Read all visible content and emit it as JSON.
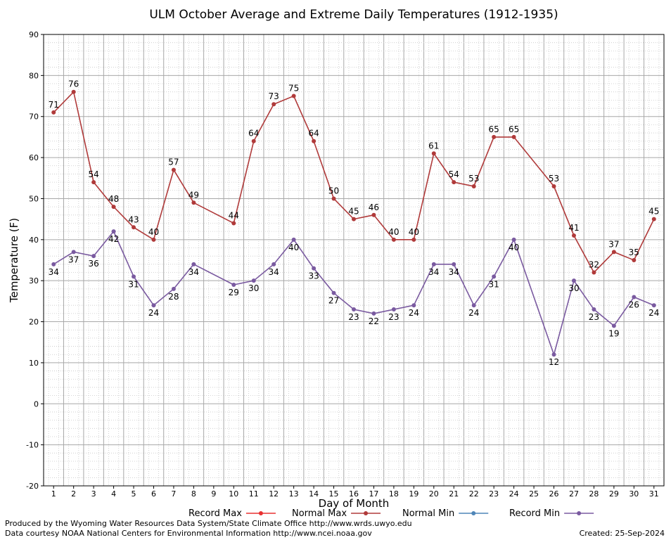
{
  "chart_data": {
    "type": "line",
    "title": "ULM October Average and Extreme Daily Temperatures (1912-1935)",
    "xlabel": "Day of Month",
    "ylabel": "Temperature (F)",
    "ylim": [
      -20,
      90
    ],
    "yticks": [
      -20,
      -10,
      0,
      10,
      20,
      30,
      40,
      50,
      60,
      70,
      80,
      90
    ],
    "x": [
      1,
      2,
      3,
      4,
      5,
      6,
      7,
      8,
      9,
      10,
      11,
      12,
      13,
      14,
      15,
      16,
      17,
      18,
      19,
      20,
      21,
      22,
      23,
      24,
      25,
      26,
      27,
      28,
      29,
      30,
      31
    ],
    "grid": true,
    "legend_position": "bottom",
    "series": [
      {
        "name": "Record Max",
        "color": "#b03a3a",
        "points": [
          [
            1,
            71
          ],
          [
            2,
            76
          ],
          [
            3,
            54
          ],
          [
            4,
            48
          ],
          [
            5,
            43
          ],
          [
            6,
            40
          ],
          [
            7,
            57
          ],
          [
            8,
            49
          ],
          [
            10,
            44
          ],
          [
            11,
            64
          ],
          [
            12,
            73
          ],
          [
            13,
            75
          ],
          [
            14,
            64
          ],
          [
            15,
            50
          ],
          [
            16,
            45
          ],
          [
            17,
            46
          ],
          [
            18,
            40
          ],
          [
            19,
            40
          ],
          [
            20,
            61
          ],
          [
            21,
            54
          ],
          [
            22,
            53
          ],
          [
            23,
            65
          ],
          [
            24,
            65
          ],
          [
            26,
            53
          ],
          [
            27,
            41
          ],
          [
            28,
            32
          ],
          [
            29,
            37
          ],
          [
            30,
            35
          ],
          [
            31,
            45
          ]
        ]
      },
      {
        "name": "Record Min",
        "color": "#7a5aa0",
        "points": [
          [
            1,
            34
          ],
          [
            2,
            37
          ],
          [
            3,
            36
          ],
          [
            4,
            42
          ],
          [
            5,
            31
          ],
          [
            6,
            24
          ],
          [
            7,
            28
          ],
          [
            8,
            34
          ],
          [
            10,
            29
          ],
          [
            11,
            30
          ],
          [
            12,
            34
          ],
          [
            13,
            40
          ],
          [
            14,
            33
          ],
          [
            15,
            27
          ],
          [
            16,
            23
          ],
          [
            17,
            22
          ],
          [
            18,
            23
          ],
          [
            19,
            24
          ],
          [
            20,
            34
          ],
          [
            21,
            34
          ],
          [
            22,
            24
          ],
          [
            23,
            31
          ],
          [
            24,
            40
          ],
          [
            26,
            12
          ],
          [
            27,
            30
          ],
          [
            28,
            23
          ],
          [
            29,
            19
          ],
          [
            30,
            26
          ],
          [
            31,
            24
          ]
        ]
      }
    ],
    "legend": [
      {
        "name": "Record Max",
        "color": "#e83030"
      },
      {
        "name": "Normal Max",
        "color": "#b03a3a"
      },
      {
        "name": "Normal Min",
        "color": "#4f86b8"
      },
      {
        "name": "Record Min",
        "color": "#7a5aa0"
      }
    ]
  },
  "footer": {
    "line1": "Produced by the Wyoming Water Resources Data System/State Climate Office http://www.wrds.uwyo.edu",
    "line2": "Data courtesy NOAA National Centers for Environmental Information http://www.ncei.noaa.gov",
    "created": "Created:  25-Sep-2024"
  }
}
